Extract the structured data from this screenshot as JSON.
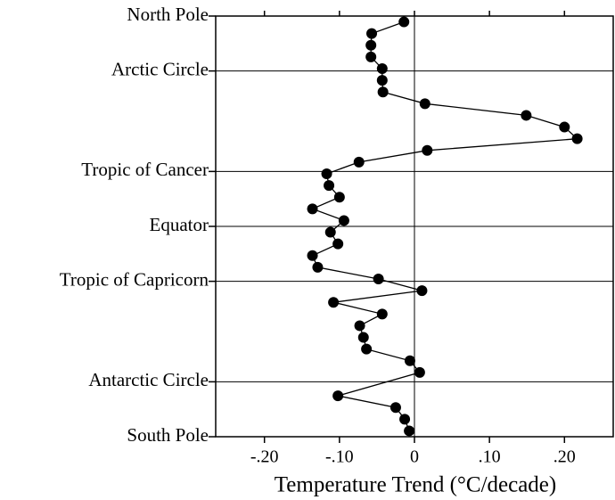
{
  "chart_data": {
    "type": "line",
    "xlabel": "Temperature Trend (°C/decade)",
    "xlim": [
      -0.265,
      0.265
    ],
    "xticks": [
      {
        "value": -0.2,
        "label": "-.20"
      },
      {
        "value": -0.1,
        "label": "-.10"
      },
      0,
      {
        "value": 0.1,
        "label": ".10"
      },
      {
        "value": 0.2,
        "label": ".20"
      }
    ],
    "ylim": [
      -90,
      90
    ],
    "yticks": [
      {
        "value": 90,
        "label": "North Pole"
      },
      {
        "value": 66.5,
        "label": "Arctic Circle"
      },
      {
        "value": 23.5,
        "label": "Tropic of Cancer"
      },
      {
        "value": 0,
        "label": "Equator"
      },
      {
        "value": -23.5,
        "label": "Tropic of Capricorn"
      },
      {
        "value": -66.5,
        "label": "Antarctic Circle"
      },
      {
        "value": -90,
        "label": "South Pole"
      }
    ],
    "y": [
      87.5,
      82.5,
      77.5,
      72.5,
      67.5,
      62.5,
      57.5,
      52.5,
      47.5,
      42.5,
      37.5,
      32.5,
      27.5,
      22.5,
      17.5,
      12.5,
      7.5,
      2.5,
      -2.5,
      -7.5,
      -12.5,
      -17.5,
      -22.5,
      -27.5,
      -32.5,
      -37.5,
      -42.5,
      -47.5,
      -52.5,
      -57.5,
      -62.5,
      -72.5,
      -77.5,
      -82.5,
      -87.5
    ],
    "values": [
      -0.014,
      -0.057,
      -0.058,
      -0.058,
      -0.043,
      -0.043,
      -0.042,
      0.014,
      0.149,
      0.2,
      0.217,
      0.017,
      -0.074,
      -0.117,
      -0.114,
      -0.1,
      -0.136,
      -0.094,
      -0.112,
      -0.102,
      -0.136,
      -0.129,
      -0.048,
      0.01,
      -0.108,
      -0.043,
      -0.073,
      -0.068,
      -0.064,
      -0.006,
      0.007,
      -0.102,
      -0.025,
      -0.013,
      -0.007
    ],
    "color": "#000000",
    "grid": true
  }
}
